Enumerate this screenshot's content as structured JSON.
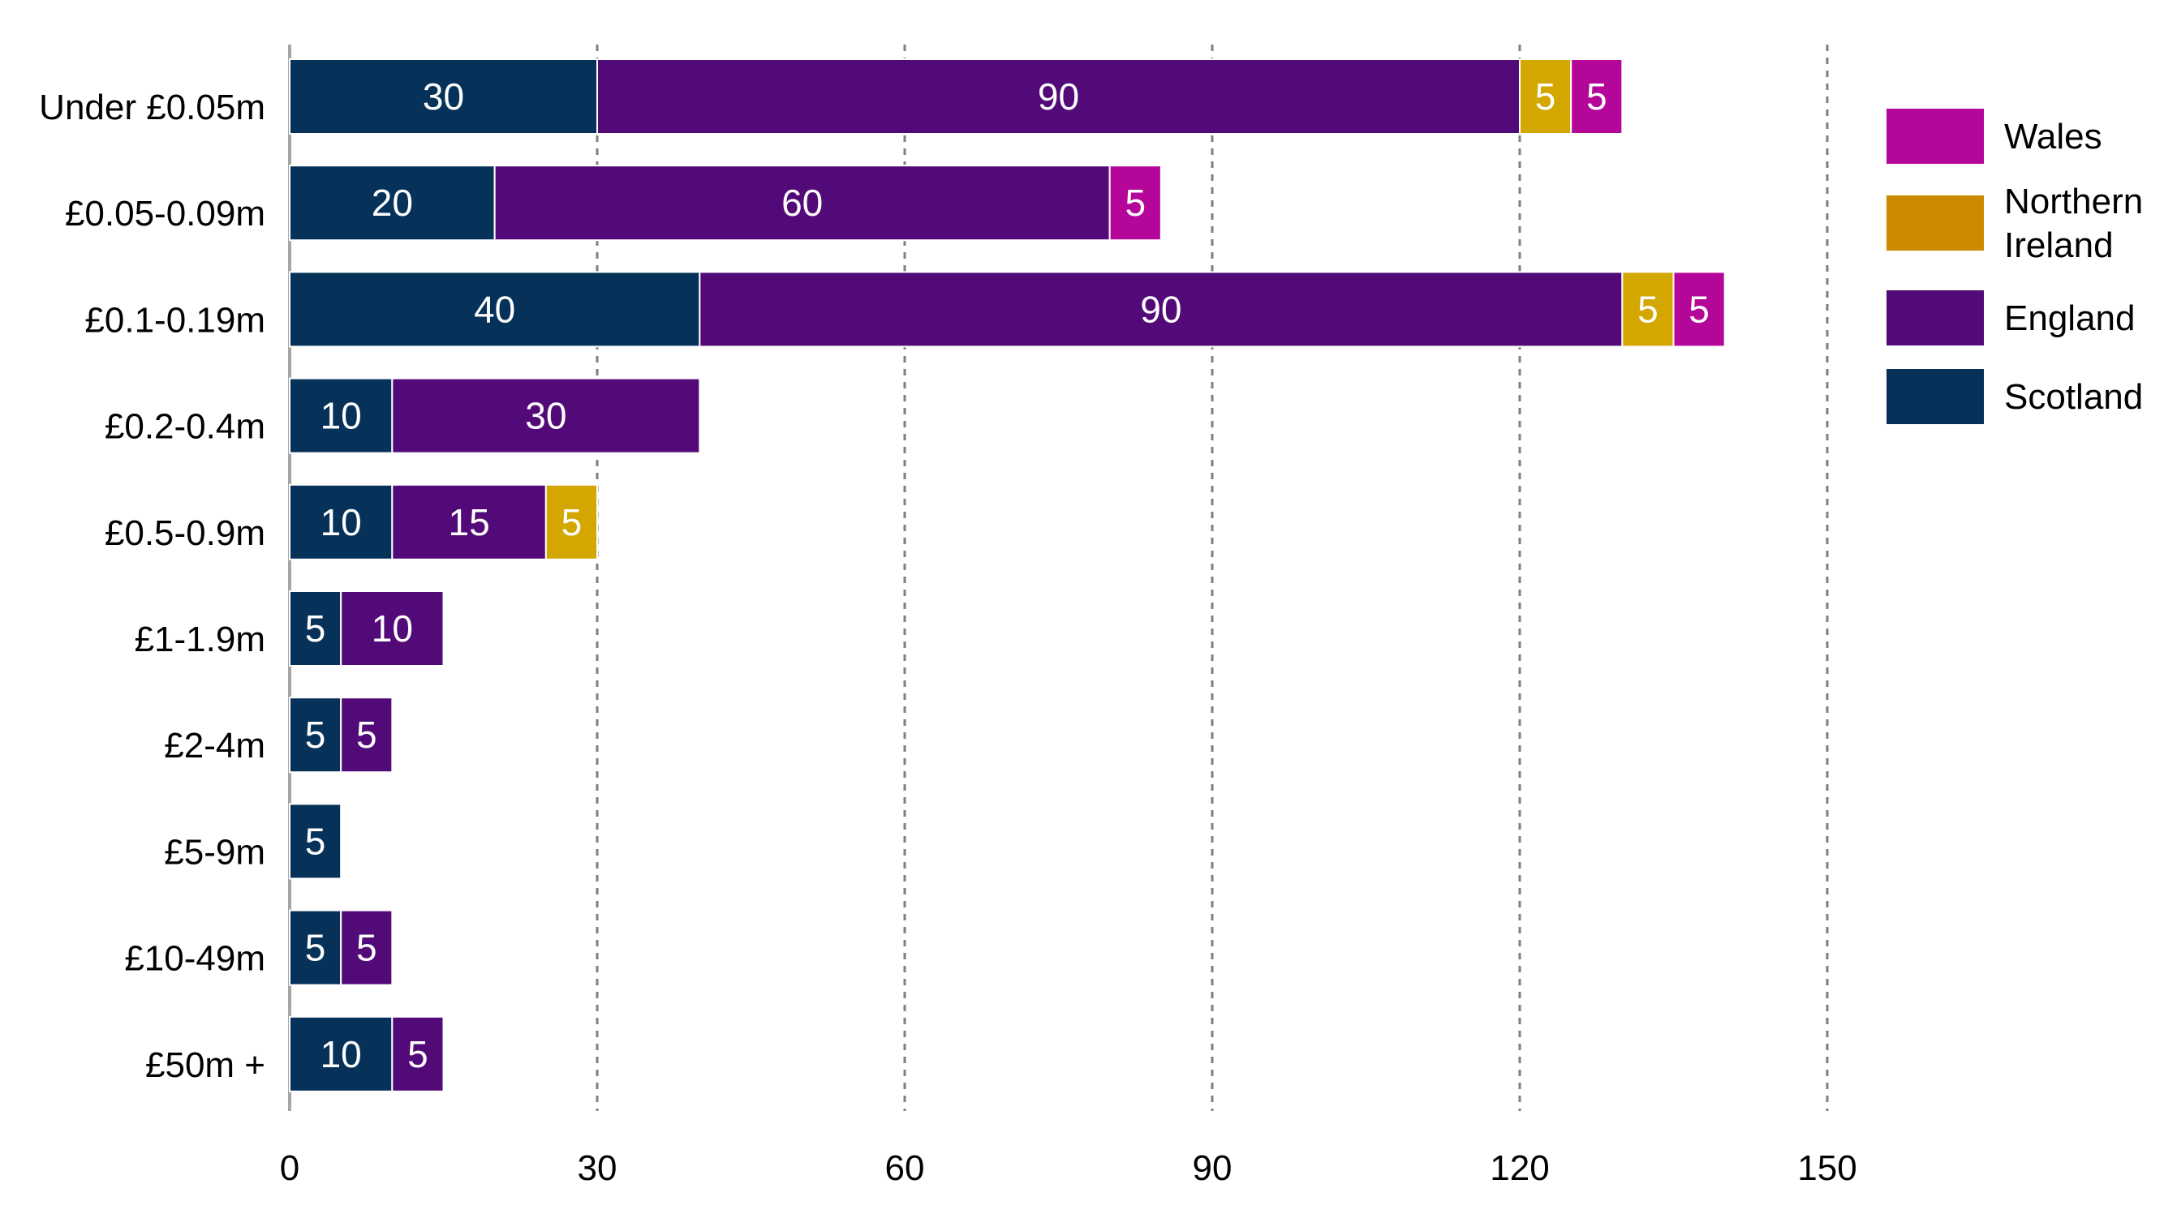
{
  "chart_data": {
    "type": "bar",
    "orientation": "horizontal",
    "stacked": true,
    "title": "",
    "xlabel": "",
    "ylabel": "",
    "categories": [
      "Under £0.05m",
      "£0.05-0.09m",
      "£0.1-0.19m",
      "£0.2-0.4m",
      "£0.5-0.9m",
      "£1-1.9m",
      "£2-4m",
      "£5-9m",
      "£10-49m",
      "£50m +"
    ],
    "series": [
      {
        "name": "Scotland",
        "color": "#06325a",
        "values": [
          30,
          20,
          40,
          10,
          10,
          5,
          5,
          5,
          5,
          10
        ]
      },
      {
        "name": "England",
        "color": "#520a78",
        "values": [
          90,
          60,
          90,
          30,
          15,
          10,
          5,
          0,
          5,
          5
        ]
      },
      {
        "name": "Northern Ireland",
        "color": "#d4a600",
        "values": [
          5,
          0,
          5,
          0,
          5,
          0,
          0,
          0,
          0,
          0
        ]
      },
      {
        "name": "Wales",
        "color": "#b5069a",
        "values": [
          5,
          5,
          5,
          0,
          0,
          0,
          0,
          0,
          0,
          0
        ]
      }
    ],
    "xlim": [
      0,
      150
    ],
    "xticks": [
      "0",
      "30",
      "60",
      "90",
      "120",
      "150"
    ],
    "grid": "vertical dashed",
    "legend": {
      "position": "right",
      "entries": [
        {
          "lines": [
            "Wales"
          ],
          "color": "#b5069a"
        },
        {
          "lines": [
            "Northern",
            "Ireland"
          ],
          "color": "#cc8a00"
        },
        {
          "lines": [
            "England"
          ],
          "color": "#520a78"
        },
        {
          "lines": [
            "Scotland"
          ],
          "color": "#06325a"
        }
      ]
    }
  }
}
